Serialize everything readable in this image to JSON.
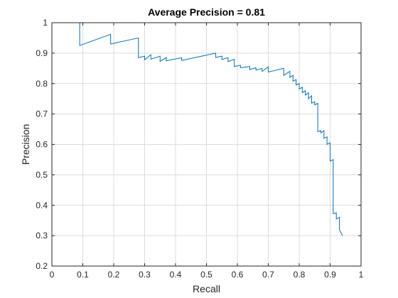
{
  "chart_data": {
    "type": "line",
    "title": "Average Precision = 0.81",
    "xlabel": "Recall",
    "ylabel": "Precision",
    "xlim": [
      0,
      1
    ],
    "ylim": [
      0.2,
      1
    ],
    "xticks": [
      0,
      0.1,
      0.2,
      0.3,
      0.4,
      0.5,
      0.6,
      0.7,
      0.8,
      0.9,
      1
    ],
    "xtick_labels": [
      "0",
      "0.1",
      "0.2",
      "0.3",
      "0.4",
      "0.5",
      "0.6",
      "0.7",
      "0.8",
      "0.9",
      "1"
    ],
    "yticks": [
      0.2,
      0.3,
      0.4,
      0.5,
      0.6,
      0.7,
      0.8,
      0.9,
      1
    ],
    "ytick_labels": [
      "0.2",
      "0.3",
      "0.4",
      "0.5",
      "0.6",
      "0.7",
      "0.8",
      "0.9",
      "1"
    ],
    "grid": true,
    "series": [
      {
        "color": "#0072bd",
        "x": [
          0.0,
          0.09,
          0.09,
          0.19,
          0.19,
          0.28,
          0.28,
          0.3,
          0.3,
          0.32,
          0.32,
          0.35,
          0.35,
          0.37,
          0.37,
          0.42,
          0.42,
          0.53,
          0.53,
          0.55,
          0.55,
          0.57,
          0.57,
          0.59,
          0.59,
          0.61,
          0.61,
          0.64,
          0.64,
          0.66,
          0.66,
          0.68,
          0.68,
          0.7,
          0.7,
          0.75,
          0.75,
          0.77,
          0.77,
          0.78,
          0.78,
          0.79,
          0.79,
          0.8,
          0.8,
          0.81,
          0.81,
          0.82,
          0.82,
          0.83,
          0.83,
          0.84,
          0.84,
          0.85,
          0.85,
          0.86,
          0.86,
          0.87,
          0.87,
          0.88,
          0.88,
          0.89,
          0.89,
          0.9,
          0.9,
          0.91,
          0.91,
          0.92,
          0.92,
          0.93,
          0.93,
          0.94
        ],
        "y": [
          1.0,
          1.0,
          0.925,
          0.962,
          0.93,
          0.95,
          0.885,
          0.89,
          0.878,
          0.895,
          0.88,
          0.89,
          0.873,
          0.885,
          0.875,
          0.885,
          0.876,
          0.9,
          0.886,
          0.89,
          0.879,
          0.885,
          0.872,
          0.88,
          0.856,
          0.86,
          0.852,
          0.856,
          0.846,
          0.852,
          0.844,
          0.85,
          0.84,
          0.855,
          0.838,
          0.85,
          0.827,
          0.84,
          0.82,
          0.827,
          0.808,
          0.813,
          0.795,
          0.8,
          0.782,
          0.788,
          0.77,
          0.776,
          0.762,
          0.77,
          0.75,
          0.76,
          0.735,
          0.74,
          0.73,
          0.735,
          0.642,
          0.645,
          0.638,
          0.645,
          0.62,
          0.625,
          0.6,
          0.605,
          0.545,
          0.55,
          0.372,
          0.375,
          0.355,
          0.36,
          0.32,
          0.3
        ]
      }
    ]
  }
}
